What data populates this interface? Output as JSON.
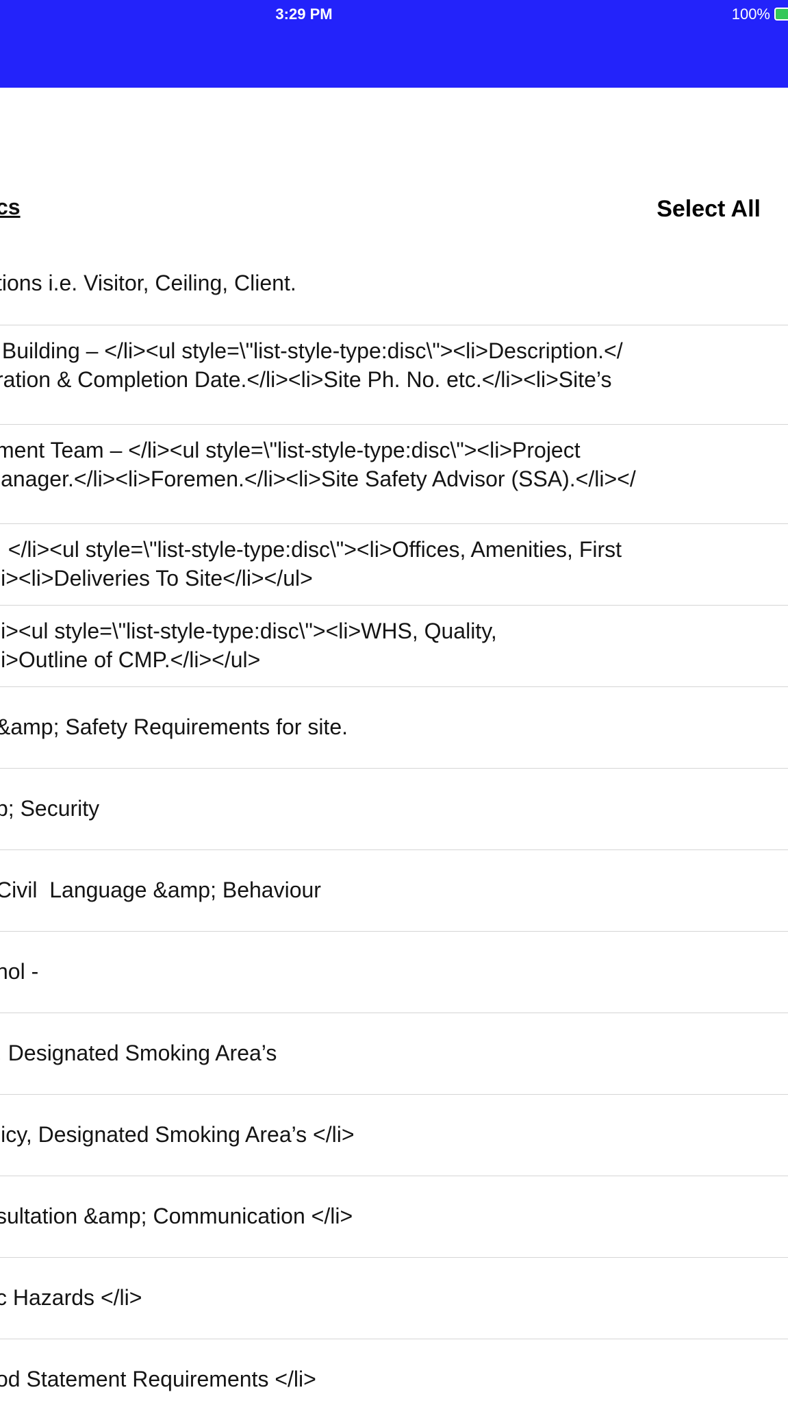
{
  "status_bar": {
    "time": "3:29 PM",
    "battery_percent": "100%"
  },
  "header": {
    "section_title": "cs",
    "select_all_label": "Select All"
  },
  "items": [
    {
      "text": "tions i.e. Visitor, Ceiling, Client."
    },
    {
      "text": " Building – </li><ul style=\\\"list-style-type:disc\\\"><li>Description.</\nration & Completion Date.</li><li>Site Ph. No. etc.</li><li>Site’s"
    },
    {
      "text": "ment Team – </li><ul style=\\\"list-style-type:disc\\\"><li>Project\nlanager.</li><li>Foremen.</li><li>Site Safety Advisor (SSA).</li></"
    },
    {
      "text": "  </li><ul style=\\\"list-style-type:disc\\\"><li>Offices, Amenities, First\nli><li>Deliveries To Site</li></ul>"
    },
    {
      "text": "li><ul style=\\\"list-style-type:disc\\\"><li>WHS, Quality,\nli>Outline of CMP.</li></ul>"
    },
    {
      "text": "&amp; Safety Requirements for site."
    },
    {
      "text": "p; Security"
    },
    {
      "text": "Civil  Language &amp; Behaviour"
    },
    {
      "text": "hol -"
    },
    {
      "text": ", Designated Smoking Area’s"
    },
    {
      "text": "licy, Designated Smoking Area’s </li>"
    },
    {
      "text": "sultation &amp; Communication </li>"
    },
    {
      "text": "c Hazards </li>"
    },
    {
      "text": "od Statement Requirements </li>"
    }
  ]
}
